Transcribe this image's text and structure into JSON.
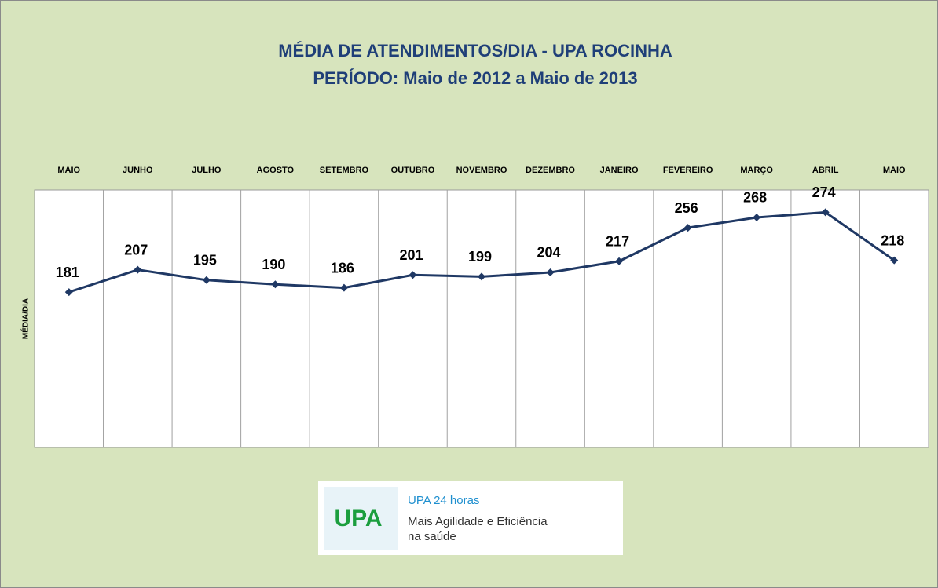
{
  "chart_data": {
    "type": "line",
    "title": "MÉDIA DE ATENDIMENTOS/DIA - UPA ROCINHA",
    "subtitle": "PERÍODO: Maio de 2012 a Maio de 2013",
    "y_label": "MÉDIA/DIA",
    "categories": [
      "MAIO",
      "JUNHO",
      "JULHO",
      "AGOSTO",
      "SETEMBRO",
      "OUTUBRO",
      "NOVEMBRO",
      "DEZEMBRO",
      "JANEIRO",
      "FEVEREIRO",
      "MARÇO",
      "ABRIL",
      "MAIO"
    ],
    "values": [
      181,
      207,
      195,
      190,
      186,
      201,
      199,
      204,
      217,
      256,
      268,
      274,
      218
    ],
    "color": "#1f3864",
    "ylim": [
      0,
      300
    ]
  },
  "logo": {
    "mark": "UPA",
    "heading": "UPA 24 horas",
    "line1": "Mais Agilidade e Eficiência",
    "line2": "na saúde"
  }
}
